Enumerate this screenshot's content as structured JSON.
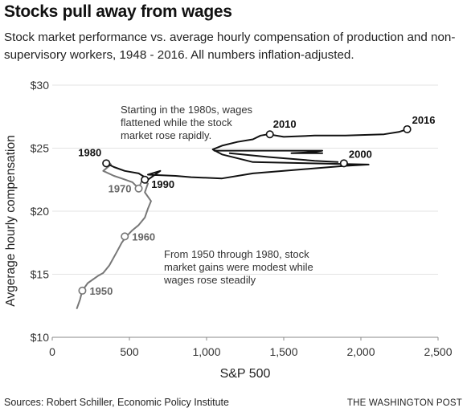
{
  "header": {
    "title": "Stocks pull away from wages",
    "subtitle": "Stock market performance vs. average hourly compensation of production and non-supervisory workers, 1948 - 2016. All numbers inflation-adjusted."
  },
  "footer": {
    "source": "Sources: Robert Schiller, Economic Policy Institute",
    "brand": "THE WASHINGTON POST"
  },
  "chart_data": {
    "type": "line",
    "xlabel": "S&P 500",
    "ylabel": "Avgerage hourly compensation",
    "xlim": [
      0,
      2500
    ],
    "ylim": [
      10,
      30
    ],
    "xticks": [
      0,
      500,
      1000,
      1500,
      2000,
      2500
    ],
    "xtick_labels": [
      "0",
      "500",
      "1,000",
      "1,500",
      "2,000",
      "2,500"
    ],
    "yticks": [
      10,
      15,
      20,
      25,
      30
    ],
    "ytick_labels": [
      "$10",
      "$15",
      "$20",
      "$25",
      "$30"
    ],
    "grid": "horizontal",
    "series": [
      {
        "color": "#777777",
        "points": [
          [
            160,
            12.3
          ],
          [
            180,
            13.0
          ],
          [
            195,
            13.7
          ],
          [
            230,
            14.3
          ],
          [
            300,
            14.9
          ],
          [
            330,
            15.1
          ],
          [
            370,
            15.7
          ],
          [
            420,
            16.8
          ],
          [
            450,
            17.5
          ],
          [
            480,
            18.0
          ],
          [
            520,
            18.5
          ],
          [
            560,
            18.9
          ],
          [
            600,
            19.5
          ],
          [
            620,
            20.2
          ],
          [
            640,
            20.8
          ],
          [
            600,
            21.5
          ],
          [
            620,
            22.2
          ],
          [
            580,
            22.4
          ],
          [
            560,
            21.8
          ],
          [
            520,
            22.3
          ],
          [
            450,
            22.6
          ],
          [
            400,
            22.8
          ],
          [
            330,
            23.2
          ],
          [
            380,
            23.7
          ],
          [
            360,
            24.0
          ],
          [
            350,
            23.8
          ]
        ]
      },
      {
        "color": "#111111",
        "points": [
          [
            350,
            23.8
          ],
          [
            400,
            23.5
          ],
          [
            470,
            23.2
          ],
          [
            560,
            23.0
          ],
          [
            600,
            22.7
          ],
          [
            620,
            22.5
          ],
          [
            700,
            23.2
          ],
          [
            620,
            22.9
          ],
          [
            800,
            22.8
          ],
          [
            900,
            22.7
          ],
          [
            1100,
            22.6
          ],
          [
            1300,
            23.0
          ],
          [
            1500,
            23.2
          ],
          [
            1700,
            23.4
          ],
          [
            1900,
            23.6
          ],
          [
            2050,
            23.7
          ],
          [
            1300,
            23.9
          ],
          [
            1100,
            24.5
          ],
          [
            1040,
            24.9
          ],
          [
            1100,
            25.2
          ],
          [
            1200,
            25.5
          ],
          [
            1300,
            25.7
          ],
          [
            1350,
            26.0
          ],
          [
            1400,
            26.1
          ],
          [
            1500,
            25.9
          ],
          [
            1700,
            26.0
          ],
          [
            1900,
            26.0
          ],
          [
            2150,
            26.1
          ],
          [
            2250,
            26.3
          ],
          [
            2300,
            26.5
          ]
        ]
      },
      {
        "color": "#111111",
        "points": [
          [
            1050,
            24.8
          ],
          [
            1350,
            24.8
          ],
          [
            1750,
            24.8
          ],
          [
            1700,
            24.7
          ],
          [
            1550,
            24.6
          ],
          [
            1750,
            24.6
          ]
        ]
      },
      {
        "color": "#111111",
        "points": [
          [
            1150,
            24.6
          ],
          [
            1400,
            24.3
          ],
          [
            1700,
            24.0
          ],
          [
            1850,
            23.9
          ]
        ]
      }
    ],
    "markers": [
      {
        "label": "1950",
        "x": 195,
        "y": 13.7,
        "style": "gray"
      },
      {
        "label": "1960",
        "x": 470,
        "y": 18.0,
        "style": "gray"
      },
      {
        "label": "1970",
        "x": 560,
        "y": 21.8,
        "style": "gray"
      },
      {
        "label": "1980",
        "x": 350,
        "y": 23.8,
        "style": "dark"
      },
      {
        "label": "1990",
        "x": 600,
        "y": 22.5,
        "style": "dark"
      },
      {
        "label": "2000",
        "x": 1890,
        "y": 23.8,
        "style": "dark"
      },
      {
        "label": "2010",
        "x": 1410,
        "y": 26.1,
        "style": "dark"
      },
      {
        "label": "2016",
        "x": 2300,
        "y": 26.5,
        "style": "dark"
      }
    ],
    "annotations": [
      {
        "lines": [
          "Starting in the 1980s, wages",
          "flattened while the stock",
          "market rose rapidly."
        ]
      },
      {
        "lines": [
          "From 1950 through 1980, stock",
          "market gains were modest while",
          "wages rose steadily"
        ]
      }
    ]
  }
}
